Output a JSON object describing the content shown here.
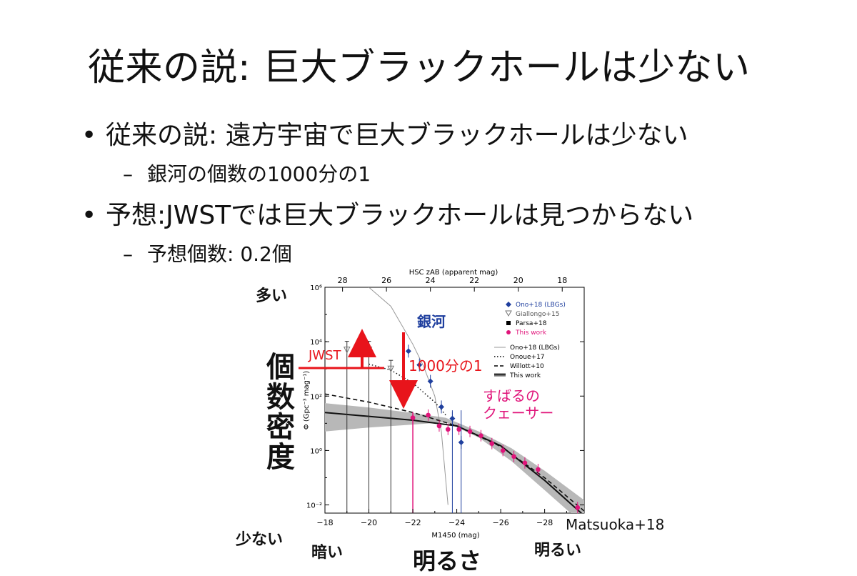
{
  "slide": {
    "title": "従来の説: 巨大ブラックホールは少ない",
    "bullets": [
      {
        "text": "従来の説: 遠方宇宙で巨大ブラックホールは少ない",
        "sub": "銀河の個数の1000分の1"
      },
      {
        "text": "予想:JWSTでは巨大ブラックホールは見つからない",
        "sub": "予想個数: 0.2個"
      }
    ],
    "bullet_marker": "•",
    "sub_marker": "–"
  },
  "annotations": {
    "many": "多い",
    "few": "少ない",
    "dark": "暗い",
    "bright": "明るい",
    "brightness": "明るさ",
    "number_density": "個数密度",
    "jwst": "JWST",
    "ratio": "1000分の1",
    "galaxy": "銀河",
    "subaru_quasar_1": "すばるの",
    "subaru_quasar_2": "クェーサー",
    "citation": "Matsuoka+18",
    "colors": {
      "red": "#e8141b",
      "blue": "#1f3f9e",
      "pink": "#e0147a"
    }
  },
  "chart_data": {
    "type": "scatter",
    "xlabel": "M1450 (mag)",
    "x2label": "HSC zAB (apparent mag)",
    "ylabel": "Φ (Gpc⁻³ mag⁻¹)",
    "xlim": [
      -18,
      -29.8
    ],
    "yscale": "log",
    "ylim": [
      0.005,
      1000000
    ],
    "x_ticks": [
      "−18",
      "−20",
      "−22",
      "−24",
      "−26",
      "−28"
    ],
    "x2_ticks": [
      "28",
      "26",
      "24",
      "22",
      "20",
      "18"
    ],
    "y_ticks": [
      "10⁶",
      "10⁴",
      "10²",
      "10⁰",
      "10⁻²"
    ],
    "legend": [
      "Ono+18 (LBGs)",
      "Giallongo+15",
      "Parsa+18",
      "This work",
      "Ono+18 (LBGs)",
      "Onoue+17",
      "Willott+10",
      "This work"
    ],
    "legend_position": "top-right",
    "series": [
      {
        "name": "Ono+18 (LBGs)",
        "kind": "points",
        "color": "#1f3f9e",
        "x": [
          -21.8,
          -22.3,
          -22.8,
          -23.3,
          -23.8,
          -24.2
        ],
        "y": [
          4500,
          1400,
          350,
          40,
          15,
          2
        ]
      },
      {
        "name": "Giallongo+15",
        "kind": "upper-limit",
        "color": "#888888",
        "x": [
          -19.0,
          -20.0,
          -21.0
        ],
        "y": [
          5000,
          5000,
          1000
        ]
      },
      {
        "name": "This work",
        "kind": "points",
        "color": "#e0147a",
        "x": [
          -22.0,
          -22.7,
          -23.2,
          -23.6,
          -24.1,
          -24.6,
          -25.1,
          -25.6,
          -26.1,
          -26.6,
          -27.1,
          -27.7,
          -29.5
        ],
        "y": [
          16,
          20,
          8,
          6,
          6,
          5,
          3.5,
          1.8,
          1.0,
          0.6,
          0.35,
          0.2,
          0.008
        ]
      },
      {
        "name": "Ono+18 (LBGs)",
        "kind": "line",
        "style": "solid-grey",
        "color": "#999999",
        "x": [
          -20.0,
          -21.0,
          -22.0,
          -22.5,
          -23.0,
          -23.3,
          -23.6
        ],
        "y": [
          1000000,
          200000,
          8000,
          1200,
          100,
          5,
          0.01
        ]
      },
      {
        "name": "Onoue+17",
        "kind": "line",
        "style": "dotted",
        "color": "#111111",
        "x": [
          -20.0,
          -21.0,
          -22.0,
          -23.0,
          -23.5
        ],
        "y": [
          1500,
          900,
          300,
          60,
          20
        ]
      },
      {
        "name": "Willott+10",
        "kind": "line",
        "style": "dashed",
        "color": "#111111",
        "x": [
          -18,
          -20,
          -22,
          -24,
          -26,
          -28,
          -29.8
        ],
        "y": [
          120,
          60,
          25,
          8,
          1.4,
          0.1,
          0.006
        ]
      },
      {
        "name": "This work",
        "kind": "line",
        "style": "solid-thick",
        "color": "#111111",
        "x": [
          -18,
          -20,
          -22,
          -24,
          -26,
          -28,
          -29.8
        ],
        "y": [
          25,
          18,
          13,
          8,
          1.5,
          0.08,
          0.004
        ]
      }
    ]
  }
}
